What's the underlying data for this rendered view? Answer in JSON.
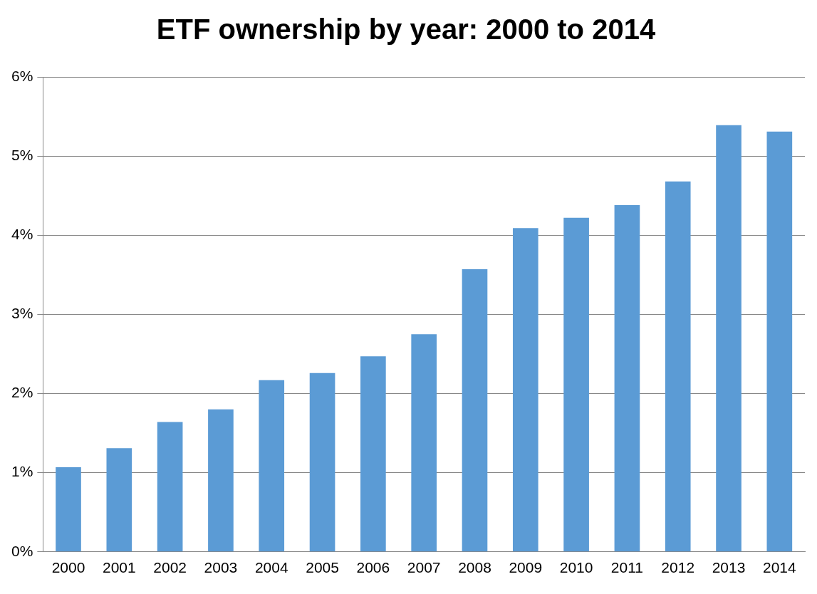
{
  "chart_data": {
    "type": "bar",
    "title": "ETF ownership by year: 2000 to 2014",
    "categories": [
      "2000",
      "2001",
      "2002",
      "2003",
      "2004",
      "2005",
      "2006",
      "2007",
      "2008",
      "2009",
      "2010",
      "2011",
      "2012",
      "2013",
      "2014"
    ],
    "values": [
      1.07,
      1.31,
      1.64,
      1.8,
      2.17,
      2.26,
      2.47,
      2.75,
      3.57,
      4.09,
      4.22,
      4.38,
      4.68,
      5.39,
      5.31
    ],
    "color": "#5b9bd5",
    "ylim": [
      0,
      6
    ],
    "yticks": [
      {
        "value": 0,
        "label": "0%"
      },
      {
        "value": 1,
        "label": "1%"
      },
      {
        "value": 2,
        "label": "2%"
      },
      {
        "value": 3,
        "label": "3%"
      },
      {
        "value": 4,
        "label": "4%"
      },
      {
        "value": 5,
        "label": "5%"
      },
      {
        "value": 6,
        "label": "6%"
      }
    ],
    "grid": "y"
  }
}
